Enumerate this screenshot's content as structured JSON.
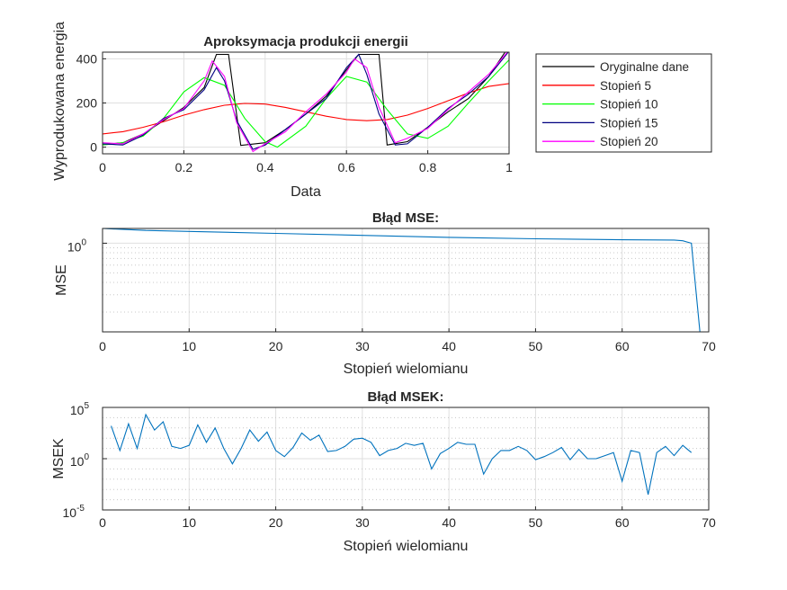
{
  "chart_data": [
    {
      "type": "line",
      "title": "Aproksymacja produkcji energii",
      "xlabel": "Data",
      "ylabel": "Wyprodukowana energia",
      "xlim": [
        0,
        1
      ],
      "ylim": [
        -30,
        430
      ],
      "xticks": [
        0,
        0.2,
        0.4,
        0.6,
        0.8,
        1
      ],
      "xtick_labels": [
        "0",
        "0.2",
        "0.4",
        "0.6",
        "0.8",
        "1"
      ],
      "yticks": [
        0,
        200,
        400
      ],
      "ytick_labels": [
        "0",
        "200",
        "400"
      ],
      "grid": true,
      "legend": "outside-right",
      "series": [
        {
          "name": "Oryginalne dane",
          "color": "#000000",
          "x": [
            0,
            0.05,
            0.1,
            0.15,
            0.2,
            0.25,
            0.28,
            0.31,
            0.34,
            0.4,
            0.45,
            0.5,
            0.55,
            0.6,
            0.63,
            0.66,
            0.68,
            0.7,
            0.75,
            0.8,
            0.85,
            0.9,
            0.95,
            0.99,
            1
          ],
          "y": [
            12,
            20,
            60,
            120,
            180,
            270,
            420,
            420,
            8,
            20,
            80,
            150,
            230,
            350,
            420,
            420,
            420,
            10,
            25,
            90,
            160,
            220,
            320,
            430,
            430
          ]
        },
        {
          "name": "Stopień 5",
          "color": "#ff0000",
          "x": [
            0,
            0.05,
            0.1,
            0.15,
            0.2,
            0.25,
            0.3,
            0.35,
            0.4,
            0.45,
            0.5,
            0.55,
            0.6,
            0.65,
            0.7,
            0.75,
            0.8,
            0.85,
            0.9,
            0.95,
            1
          ],
          "y": [
            60,
            70,
            90,
            115,
            145,
            170,
            190,
            198,
            195,
            180,
            160,
            140,
            125,
            120,
            125,
            145,
            175,
            210,
            245,
            275,
            288
          ]
        },
        {
          "name": "Stopień 10",
          "color": "#00ff00",
          "x": [
            0,
            0.05,
            0.1,
            0.15,
            0.2,
            0.25,
            0.3,
            0.35,
            0.4,
            0.43,
            0.5,
            0.55,
            0.6,
            0.65,
            0.7,
            0.75,
            0.8,
            0.85,
            0.9,
            0.95,
            1
          ],
          "y": [
            10,
            20,
            50,
            130,
            250,
            315,
            280,
            130,
            25,
            0,
            95,
            220,
            320,
            295,
            170,
            60,
            40,
            95,
            200,
            300,
            395
          ]
        },
        {
          "name": "Stopień 15",
          "color": "#000080",
          "x": [
            0,
            0.05,
            0.1,
            0.15,
            0.2,
            0.25,
            0.28,
            0.3,
            0.33,
            0.37,
            0.4,
            0.45,
            0.5,
            0.55,
            0.6,
            0.63,
            0.65,
            0.68,
            0.72,
            0.75,
            0.8,
            0.85,
            0.9,
            0.95,
            1
          ],
          "y": [
            15,
            10,
            55,
            130,
            170,
            260,
            360,
            300,
            120,
            -10,
            10,
            80,
            150,
            220,
            360,
            420,
            330,
            150,
            10,
            15,
            90,
            175,
            240,
            320,
            435
          ]
        },
        {
          "name": "Stopień 20",
          "color": "#ff00ff",
          "x": [
            0,
            0.05,
            0.1,
            0.15,
            0.2,
            0.25,
            0.27,
            0.3,
            0.33,
            0.37,
            0.4,
            0.45,
            0.5,
            0.55,
            0.6,
            0.62,
            0.65,
            0.68,
            0.72,
            0.75,
            0.8,
            0.85,
            0.9,
            0.95,
            1
          ],
          "y": [
            20,
            15,
            60,
            125,
            175,
            300,
            390,
            320,
            110,
            -20,
            15,
            70,
            160,
            240,
            340,
            400,
            360,
            180,
            20,
            40,
            85,
            170,
            250,
            330,
            440
          ]
        }
      ]
    },
    {
      "type": "line",
      "title": "Błąd MSE:",
      "xlabel": "Stopień wielomianu",
      "ylabel": "MSE",
      "yscale": "log",
      "xlim": [
        0,
        70
      ],
      "ylim_log10": [
        -0.9,
        0.15
      ],
      "xticks": [
        0,
        10,
        20,
        30,
        40,
        50,
        60,
        70
      ],
      "xtick_labels": [
        "0",
        "10",
        "20",
        "30",
        "40",
        "50",
        "60",
        "70"
      ],
      "ytick_labels": [
        {
          "base": "10",
          "exp": "0"
        }
      ],
      "grid": true,
      "series": [
        {
          "name": "MSE",
          "color": "#0072bd",
          "x": [
            0,
            5,
            10,
            20,
            30,
            40,
            50,
            60,
            66,
            67,
            68,
            69
          ],
          "log10y": [
            0.15,
            0.13,
            0.12,
            0.1,
            0.08,
            0.06,
            0.045,
            0.035,
            0.032,
            0.025,
            0.0,
            -0.92
          ]
        }
      ]
    },
    {
      "type": "line",
      "title": "Błąd MSEK:",
      "xlabel": "Stopień wielomianu",
      "ylabel": "MSEK",
      "yscale": "log",
      "xlim": [
        0,
        70
      ],
      "ylim_log10": [
        -5,
        5
      ],
      "xticks": [
        0,
        10,
        20,
        30,
        40,
        50,
        60,
        70
      ],
      "xtick_labels": [
        "0",
        "10",
        "20",
        "30",
        "40",
        "50",
        "60",
        "70"
      ],
      "ytick_labels": [
        {
          "base": "10",
          "exp": "5"
        },
        {
          "base": "10",
          "exp": "0"
        },
        {
          "base": "10",
          "exp": "-5"
        }
      ],
      "grid": true,
      "series": [
        {
          "name": "MSEK",
          "color": "#0072bd",
          "x": [
            1,
            2,
            3,
            4,
            5,
            6,
            7,
            8,
            9,
            10,
            11,
            12,
            13,
            14,
            15,
            16,
            17,
            18,
            19,
            20,
            21,
            22,
            23,
            24,
            25,
            26,
            27,
            28,
            29,
            30,
            31,
            32,
            33,
            34,
            35,
            36,
            37,
            38,
            39,
            40,
            41,
            42,
            43,
            44,
            45,
            46,
            47,
            48,
            49,
            50,
            51,
            52,
            53,
            54,
            55,
            56,
            57,
            58,
            59,
            60,
            61,
            62,
            63,
            64,
            65,
            66,
            67,
            68
          ],
          "log10y": [
            3.2,
            0.8,
            3.4,
            1.0,
            4.3,
            2.8,
            3.6,
            1.2,
            1.0,
            1.3,
            3.3,
            1.6,
            3.0,
            1.0,
            -0.5,
            1.0,
            2.8,
            1.7,
            2.6,
            0.8,
            0.2,
            1.1,
            2.5,
            1.8,
            2.3,
            0.7,
            0.8,
            1.2,
            1.9,
            2.0,
            1.6,
            0.3,
            0.8,
            1.0,
            1.5,
            1.3,
            1.5,
            -1.0,
            0.5,
            1.0,
            1.6,
            1.4,
            1.4,
            -1.5,
            0.0,
            0.8,
            0.8,
            1.2,
            0.8,
            -0.1,
            0.2,
            0.6,
            1.1,
            -0.1,
            0.9,
            0.0,
            0.0,
            0.3,
            0.6,
            -2.2,
            0.8,
            0.6,
            -3.5,
            0.6,
            1.2,
            0.3,
            1.3,
            0.6
          ]
        }
      ]
    }
  ]
}
